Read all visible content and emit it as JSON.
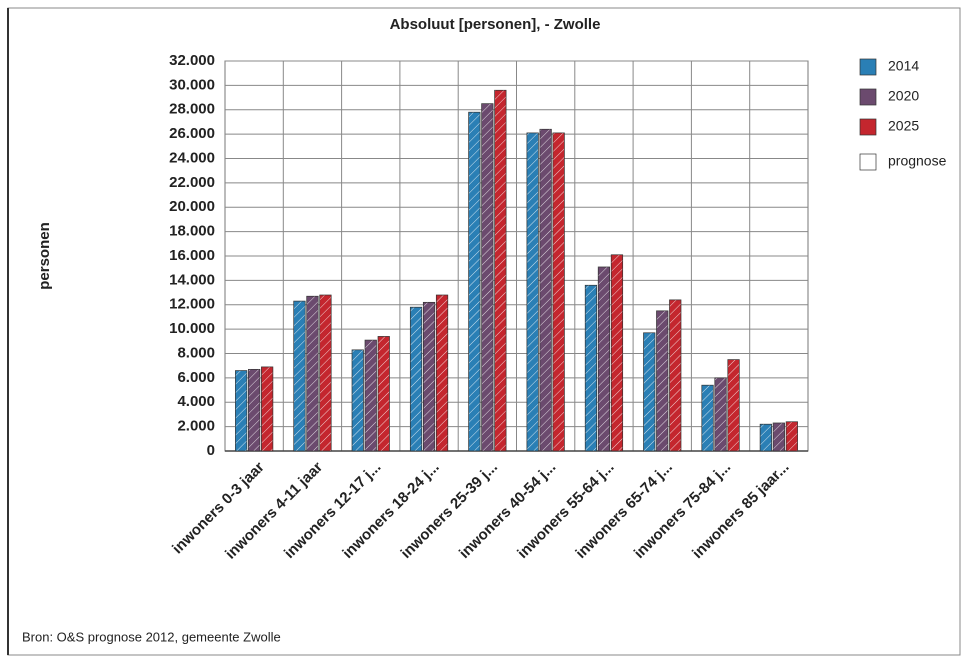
{
  "chart_data": {
    "type": "bar",
    "title": "Absoluut [personen], - Zwolle",
    "ylabel": "personen",
    "source": "Bron: O&S prognose 2012, gemeente Zwolle",
    "prognose_label": "prognose",
    "categories": [
      "inwoners 0-3 jaar",
      "inwoners 4-11 jaar",
      "inwoners 12-17 j...",
      "inwoners 18-24 j...",
      "inwoners 25-39 j...",
      "inwoners 40-54 j...",
      "inwoners 55-64 j...",
      "inwoners 65-74 j...",
      "inwoners 75-84 j...",
      "inwoners 85 jaar..."
    ],
    "series": [
      {
        "name": "2014",
        "color": "#2a7fb5",
        "values": [
          6600,
          12300,
          8300,
          11800,
          27800,
          26100,
          13600,
          9700,
          5400,
          2200
        ]
      },
      {
        "name": "2020",
        "color": "#6b4a6e",
        "values": [
          6700,
          12700,
          9100,
          12200,
          28500,
          26400,
          15100,
          11500,
          6000,
          2300
        ]
      },
      {
        "name": "2025",
        "color": "#c4262e",
        "values": [
          6900,
          12800,
          9400,
          12800,
          29600,
          26100,
          16100,
          12400,
          7500,
          2400
        ]
      }
    ],
    "ylim": [
      0,
      32000
    ],
    "yticks": [
      0,
      {
        "value": 2000,
        "label": "2.000"
      },
      {
        "value": 4000,
        "label": "4.000"
      },
      {
        "value": 6000,
        "label": "6.000"
      },
      {
        "value": 8000,
        "label": "8.000"
      },
      {
        "value": 10000,
        "label": "10.000"
      },
      {
        "value": 12000,
        "label": "12.000"
      },
      {
        "value": 14000,
        "label": "14.000"
      },
      {
        "value": 16000,
        "label": "16.000"
      },
      {
        "value": 18000,
        "label": "18.000"
      },
      {
        "value": 20000,
        "label": "20.000"
      },
      {
        "value": 22000,
        "label": "22.000"
      },
      {
        "value": 24000,
        "label": "24.000"
      },
      {
        "value": 26000,
        "label": "26.000"
      },
      {
        "value": 28000,
        "label": "28.000"
      },
      {
        "value": 30000,
        "label": "30.000"
      },
      {
        "value": 32000,
        "label": "32.000"
      }
    ],
    "grid": true
  }
}
